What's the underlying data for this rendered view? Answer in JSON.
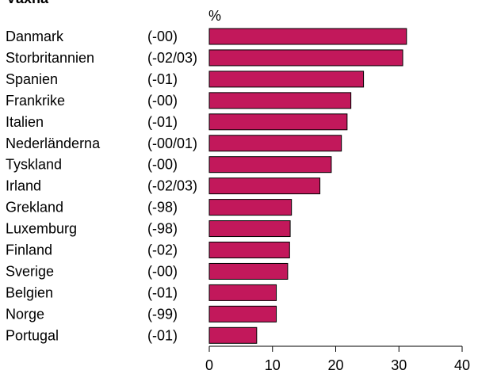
{
  "chart_data": {
    "type": "bar",
    "orientation": "horizontal",
    "title": "Växha",
    "unit_label": "%",
    "categories": [
      "Danmark",
      "Storbritannien",
      "Spanien",
      "Frankrike",
      "Italien",
      "Nederländerna",
      "Tyskland",
      "Irland",
      "Grekland",
      "Luxemburg",
      "Finland",
      "Sverige",
      "Belgien",
      "Norge",
      "Portugal"
    ],
    "years": [
      "(-00)",
      "(-02/03)",
      "(-01)",
      "(-00)",
      "(-01)",
      "(-00/01)",
      "(-00)",
      "(-02/03)",
      "(-98)",
      "(-98)",
      "(-02)",
      "(-00)",
      "(-01)",
      "(-99)",
      "(-01)"
    ],
    "values": [
      31.2,
      30.6,
      24.4,
      22.4,
      21.8,
      20.9,
      19.3,
      17.5,
      13.0,
      12.8,
      12.7,
      12.4,
      10.6,
      10.6,
      7.5
    ],
    "xlim": [
      0,
      40
    ],
    "xticks": [
      0,
      10,
      20,
      30,
      40
    ],
    "grid": false,
    "bar_color": "#c2185b"
  }
}
